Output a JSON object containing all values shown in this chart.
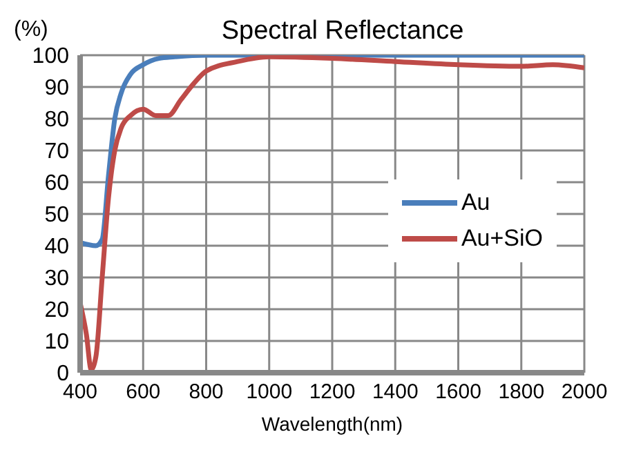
{
  "chart_data": {
    "type": "line",
    "title": "Spectral Reflectance",
    "xlabel": "Wavelength(nm)",
    "ylabel": "(%)",
    "series": [
      {
        "name": "Au",
        "color": "#4a7ebb",
        "x": [
          400,
          450,
          470,
          490,
          510,
          530,
          560,
          600,
          650,
          700,
          800,
          1000,
          1200,
          1400,
          1600,
          1800,
          2000
        ],
        "values": [
          41,
          40,
          42,
          62,
          80,
          88,
          94,
          97,
          99,
          99.5,
          100,
          100,
          100,
          100,
          100,
          100,
          100
        ]
      },
      {
        "name": "Au+SiO",
        "color": "#be4b48",
        "x": [
          400,
          420,
          435,
          450,
          470,
          490,
          510,
          530,
          560,
          600,
          640,
          680,
          720,
          760,
          800,
          900,
          1000,
          1200,
          1400,
          1600,
          1800,
          1900,
          2000
        ],
        "values": [
          22,
          12,
          1,
          5,
          30,
          55,
          70,
          77,
          81,
          83,
          81,
          81,
          86,
          91,
          95,
          98,
          99.5,
          99,
          98,
          97,
          96.5,
          97,
          96
        ]
      }
    ],
    "xlim": [
      400,
      2000
    ],
    "xticks": [
      400,
      600,
      800,
      1000,
      1200,
      1400,
      1600,
      1800,
      2000
    ],
    "ylim": [
      0,
      100
    ],
    "yticks": [
      0,
      10,
      20,
      30,
      40,
      50,
      60,
      70,
      80,
      90,
      100
    ],
    "grid": true,
    "legend": "right",
    "marker": "none",
    "line_style": "solid"
  }
}
